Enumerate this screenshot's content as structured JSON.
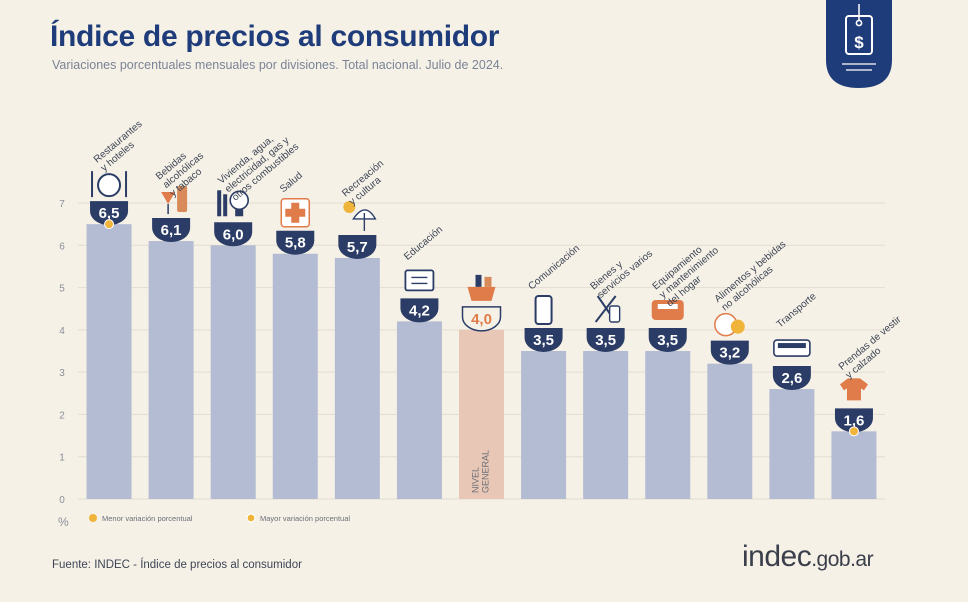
{
  "title": "Índice de precios al consumidor",
  "subtitle": "Variaciones porcentuales mensuales por divisiones. Total nacional. Julio de 2024.",
  "source": "Fuente: INDEC - Índice de precios al consumidor",
  "brand": {
    "main": "indec",
    "suffix": ".gob.ar"
  },
  "colors": {
    "bar": "#b4bcd3",
    "highlight": "#e9c7b6",
    "navy": "#1f3c7a",
    "bubble": "#2b3d66",
    "marker": "#f0b43b",
    "background": "#f6f1e6"
  },
  "chart_data": {
    "type": "bar",
    "title": "Índice de precios al consumidor",
    "ylabel": "%",
    "ylim": [
      0,
      7
    ],
    "yticks": [
      0,
      1,
      2,
      3,
      4,
      5,
      6,
      7
    ],
    "grid": true,
    "categories": [
      {
        "label": [
          "Restaurantes",
          "y hoteles"
        ],
        "value": 6.5,
        "display": "6,5",
        "icon": "cutlery-icon",
        "marker": true
      },
      {
        "label": [
          "Bebidas",
          "alcohólicas",
          "y tabaco"
        ],
        "value": 6.1,
        "display": "6,1",
        "icon": "wine-glass-icon"
      },
      {
        "label": [
          "Vivienda, agua,",
          "electricidad, gas y",
          "otros combustibles"
        ],
        "value": 6.0,
        "display": "6,0",
        "icon": "lightbulb-icon"
      },
      {
        "label": [
          "Salud"
        ],
        "value": 5.8,
        "display": "5,8",
        "icon": "health-cross-icon"
      },
      {
        "label": [
          "Recreación",
          "y cultura"
        ],
        "value": 5.7,
        "display": "5,7",
        "icon": "beach-umbrella-icon"
      },
      {
        "label": [
          "Educación"
        ],
        "value": 4.2,
        "display": "4,2",
        "icon": "book-icon"
      },
      {
        "label": [],
        "value": 4.0,
        "display": "4,0",
        "icon": "basket-icon",
        "highlight": true,
        "inner_label": [
          "NIVEL",
          "GENERAL"
        ]
      },
      {
        "label": [
          "Comunicación"
        ],
        "value": 3.5,
        "display": "3,5",
        "icon": "phone-icon"
      },
      {
        "label": [
          "Bienes y",
          "servicios varios"
        ],
        "value": 3.5,
        "display": "3,5",
        "icon": "scissors-icon"
      },
      {
        "label": [
          "Equipamiento",
          "y mantenimiento",
          "del hogar"
        ],
        "value": 3.5,
        "display": "3,5",
        "icon": "toaster-icon"
      },
      {
        "label": [
          "Alimentos y bebidas",
          "no alcohólicas"
        ],
        "value": 3.2,
        "display": "3,2",
        "icon": "food-icon"
      },
      {
        "label": [
          "Transporte"
        ],
        "value": 2.6,
        "display": "2,6",
        "icon": "bus-icon"
      },
      {
        "label": [
          "Prendas de vestir",
          "y calzado"
        ],
        "value": 1.6,
        "display": "1,6",
        "icon": "shirt-icon",
        "marker": true
      }
    ],
    "legend": [
      {
        "text": "Menor variación porcentual",
        "icon": "min-marker-icon"
      },
      {
        "text": "Mayor variación porcentual",
        "icon": "max-marker-icon"
      }
    ]
  }
}
